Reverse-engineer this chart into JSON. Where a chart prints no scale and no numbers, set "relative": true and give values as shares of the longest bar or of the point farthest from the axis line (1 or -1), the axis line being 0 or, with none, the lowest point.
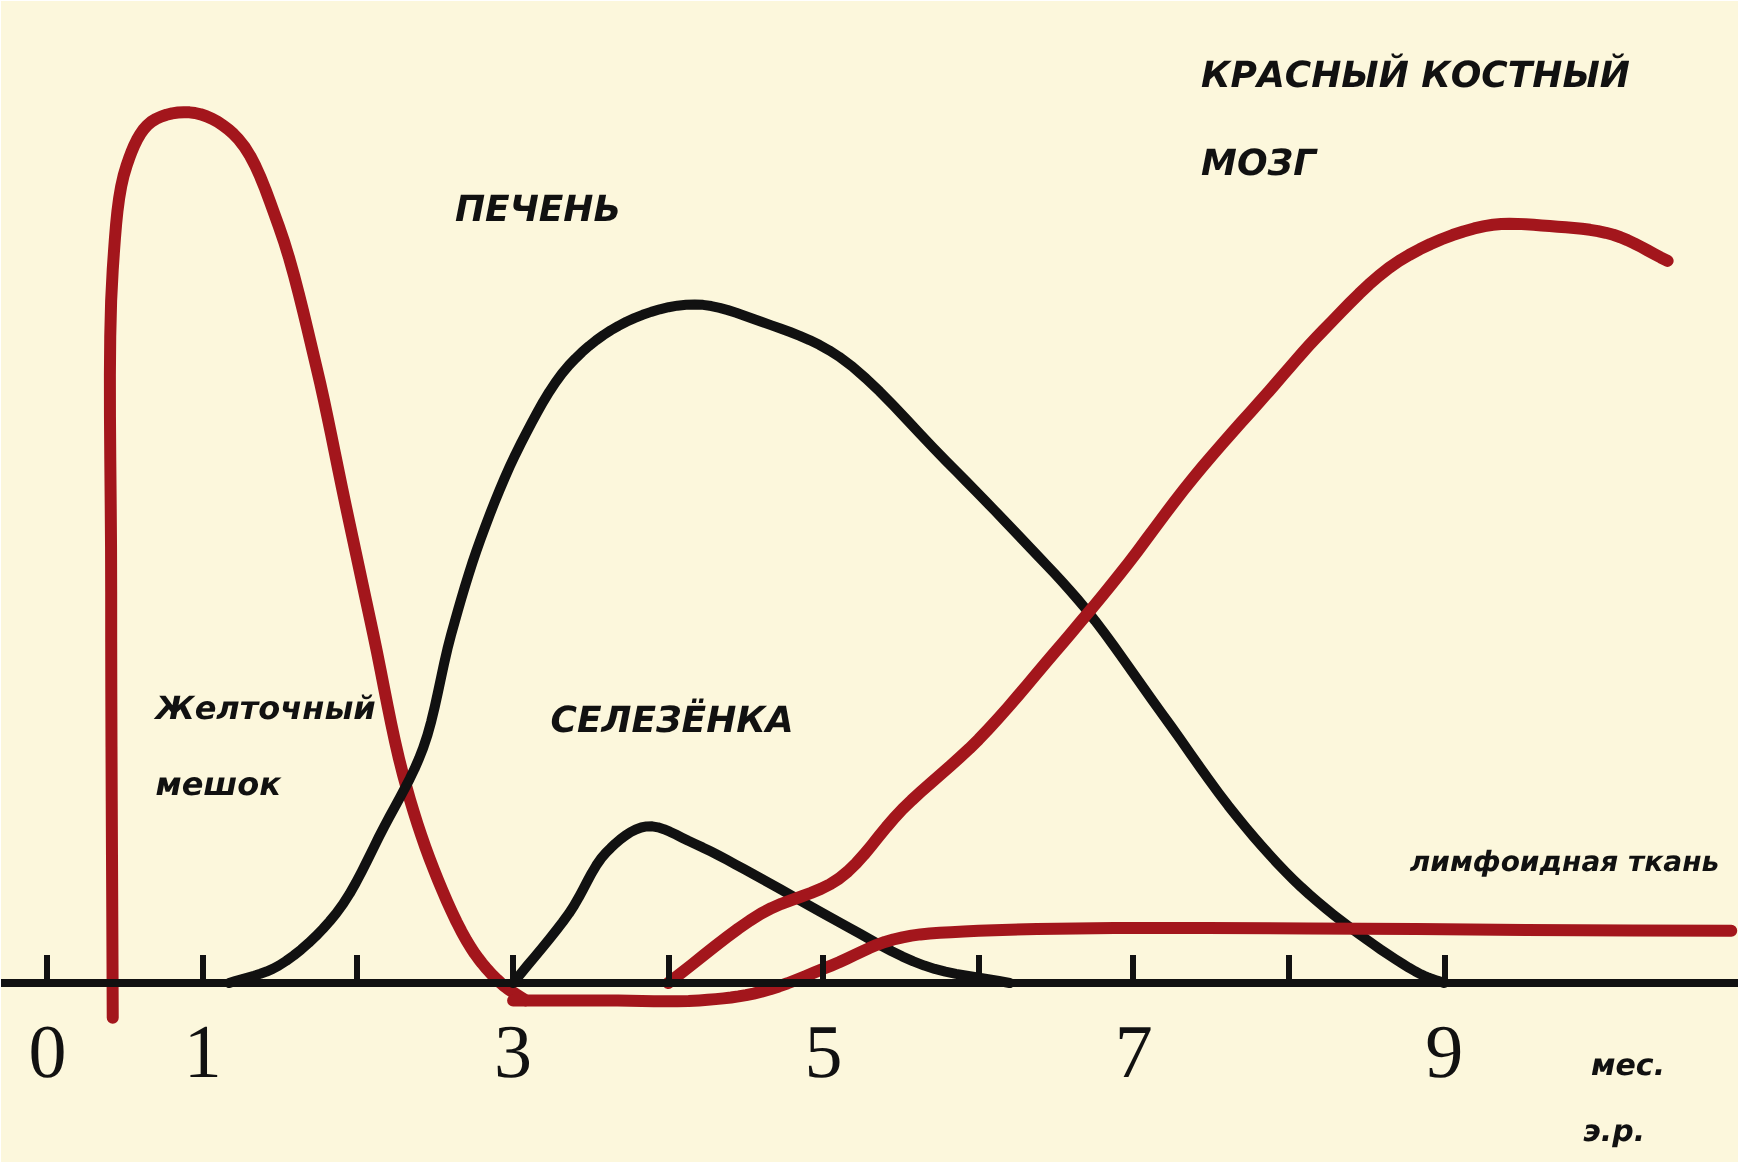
{
  "chart_data": {
    "type": "line",
    "relative": true,
    "xlabel": "мес. э.р.",
    "xlim": [
      -0.3,
      10.9
    ],
    "xticks": [
      0,
      1,
      {
        "value": 2,
        "label": null
      },
      3,
      {
        "value": 4,
        "label": null
      },
      5,
      {
        "value": 6,
        "label": null
      },
      7,
      {
        "value": 8,
        "label": null
      },
      9
    ],
    "grid": false,
    "legend": false,
    "marker": "none",
    "line_style": "solid",
    "series": [
      {
        "name": "Желточный мешок",
        "color": "#a3161c",
        "x": [
          0.42,
          0.41,
          0.42,
          0.51,
          0.67,
          0.95,
          1.23,
          1.49,
          1.73,
          1.92,
          2.1,
          2.29,
          2.49,
          2.73,
          2.92,
          3.08
        ],
        "values": [
          -0.04,
          0.45,
          0.82,
          0.94,
          0.99,
          1.0,
          0.97,
          0.87,
          0.71,
          0.55,
          0.4,
          0.24,
          0.13,
          0.04,
          0.0,
          -0.02
        ]
      },
      {
        "name": "ПЕЧЕНЬ",
        "color": "#111111",
        "x": [
          1.17,
          1.49,
          1.86,
          2.17,
          2.42,
          2.6,
          2.79,
          3.05,
          3.36,
          3.73,
          4.17,
          4.6,
          5.1,
          5.79,
          6.28,
          6.69,
          7.18,
          7.67,
          8.08,
          8.5,
          8.85,
          9.0
        ],
        "values": [
          0,
          0.02,
          0.08,
          0.18,
          0.27,
          0.4,
          0.51,
          0.62,
          0.71,
          0.76,
          0.78,
          0.76,
          0.72,
          0.6,
          0.51,
          0.43,
          0.31,
          0.19,
          0.11,
          0.05,
          0.01,
          0
        ]
      },
      {
        "name": "СЕЛЕЗЁНКА",
        "color": "#111111",
        "x": [
          3.0,
          3.36,
          3.6,
          3.86,
          4.17,
          4.6,
          5.1,
          5.65,
          6.2
        ],
        "values": [
          0,
          0.08,
          0.15,
          0.18,
          0.16,
          0.12,
          0.07,
          0.02,
          0
        ]
      },
      {
        "name": "КРАСНЫЙ КОСТНЫЙ МОЗГ",
        "color": "#a3161c",
        "x": [
          4.0,
          4.6,
          5.1,
          5.51,
          6.0,
          6.49,
          6.91,
          7.38,
          7.87,
          8.22,
          8.71,
          9.26,
          9.68,
          10.09,
          10.44
        ],
        "values": [
          0,
          0.08,
          0.12,
          0.2,
          0.28,
          0.38,
          0.47,
          0.58,
          0.68,
          0.75,
          0.83,
          0.87,
          0.87,
          0.86,
          0.83
        ]
      },
      {
        "name": "лимфоидная ткань",
        "color": "#a3161c",
        "x": [
          3.0,
          3.6,
          4.2,
          4.6,
          5.05,
          5.45,
          6.0,
          10.85
        ],
        "values": [
          -0.02,
          -0.02,
          -0.02,
          -0.01,
          0.02,
          0.05,
          0.06,
          0.06
        ]
      }
    ]
  }
}
